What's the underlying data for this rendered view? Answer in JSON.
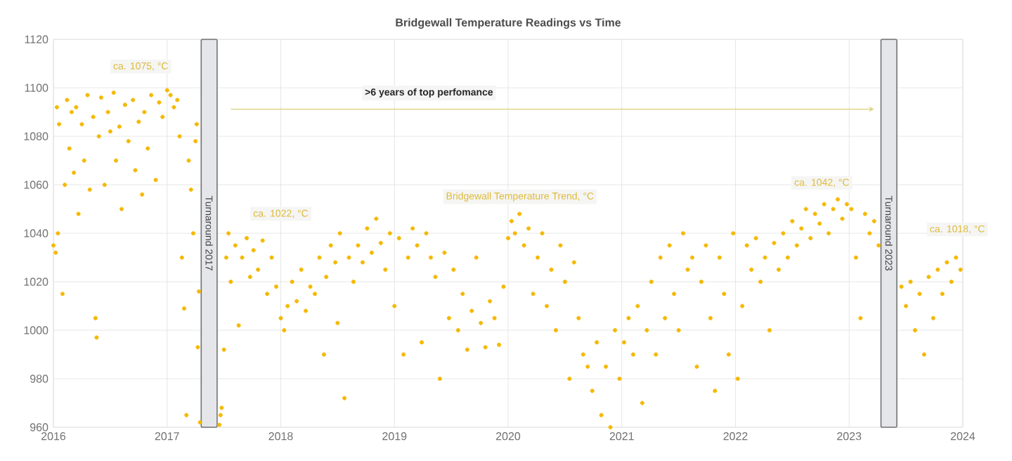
{
  "chart_data": {
    "type": "scatter",
    "title": "Bridgewall Temperature Readings vs Time",
    "xlim": [
      2016,
      2024
    ],
    "xticks": [
      2016,
      2017,
      2018,
      2019,
      2020,
      2021,
      2022,
      2023,
      2024
    ],
    "ylim": [
      960,
      1120
    ],
    "yticks": [
      960,
      980,
      1000,
      1020,
      1040,
      1060,
      1080,
      1100,
      1120
    ],
    "grid": true,
    "bands": [
      {
        "axis": "x",
        "from": 2017.3,
        "to": 2017.44,
        "label": "Turnaround 2017",
        "color": "#e4e6ea"
      },
      {
        "axis": "x",
        "from": 2023.28,
        "to": 2023.42,
        "label": "Turnaround 2023",
        "color": "#e4e6ea"
      }
    ],
    "annotations": [
      "ca. 1075, °C",
      "ca. 1022, °C",
      "Bridgewall Temperature Trend, °C",
      "ca. 1042, °C",
      "ca. 1018, °C",
      ">6 years of top perfomance"
    ],
    "series": [
      {
        "color": "#f5b800",
        "x": [
          2016.0,
          2016.02,
          2016.04,
          2016.03,
          2016.05,
          2016.08,
          2016.1,
          2016.12,
          2016.14,
          2016.16,
          2016.18,
          2016.2,
          2016.22,
          2016.25,
          2016.27,
          2016.3,
          2016.32,
          2016.35,
          2016.37,
          2016.38,
          2016.4,
          2016.42,
          2016.45,
          2016.48,
          2016.5,
          2016.53,
          2016.55,
          2016.58,
          2016.6,
          2016.63,
          2016.66,
          2016.7,
          2016.72,
          2016.75,
          2016.78,
          2016.8,
          2016.83,
          2016.86,
          2016.9,
          2016.93,
          2016.96,
          2017.0,
          2017.03,
          2017.06,
          2017.09,
          2017.11,
          2017.13,
          2017.15,
          2017.17,
          2017.19,
          2017.21,
          2017.23,
          2017.25,
          2017.26,
          2017.27,
          2017.28,
          2017.29,
          2017.46,
          2017.47,
          2017.48,
          2017.5,
          2017.52,
          2017.54,
          2017.56,
          2017.6,
          2017.63,
          2017.66,
          2017.7,
          2017.73,
          2017.76,
          2017.8,
          2017.84,
          2017.88,
          2017.92,
          2017.96,
          2018.0,
          2018.03,
          2018.06,
          2018.1,
          2018.14,
          2018.18,
          2018.22,
          2018.26,
          2018.3,
          2018.34,
          2018.38,
          2018.4,
          2018.44,
          2018.48,
          2018.5,
          2018.52,
          2018.56,
          2018.6,
          2018.64,
          2018.68,
          2018.72,
          2018.76,
          2018.8,
          2018.84,
          2018.88,
          2018.92,
          2018.96,
          2019.0,
          2019.04,
          2019.08,
          2019.12,
          2019.16,
          2019.2,
          2019.24,
          2019.28,
          2019.32,
          2019.36,
          2019.4,
          2019.44,
          2019.48,
          2019.52,
          2019.56,
          2019.6,
          2019.64,
          2019.68,
          2019.72,
          2019.76,
          2019.8,
          2019.84,
          2019.88,
          2019.92,
          2019.96,
          2020.0,
          2020.03,
          2020.06,
          2020.1,
          2020.14,
          2020.18,
          2020.22,
          2020.26,
          2020.3,
          2020.34,
          2020.38,
          2020.42,
          2020.46,
          2020.5,
          2020.54,
          2020.58,
          2020.62,
          2020.66,
          2020.7,
          2020.74,
          2020.78,
          2020.82,
          2020.86,
          2020.9,
          2020.94,
          2020.98,
          2021.02,
          2021.06,
          2021.1,
          2021.14,
          2021.18,
          2021.22,
          2021.26,
          2021.3,
          2021.34,
          2021.38,
          2021.42,
          2021.46,
          2021.5,
          2021.54,
          2021.58,
          2021.62,
          2021.66,
          2021.7,
          2021.74,
          2021.78,
          2021.82,
          2021.86,
          2021.9,
          2021.94,
          2021.98,
          2022.02,
          2022.06,
          2022.1,
          2022.14,
          2022.18,
          2022.22,
          2022.26,
          2022.3,
          2022.34,
          2022.38,
          2022.42,
          2022.46,
          2022.5,
          2022.54,
          2022.58,
          2022.62,
          2022.66,
          2022.7,
          2022.74,
          2022.78,
          2022.82,
          2022.86,
          2022.9,
          2022.94,
          2022.98,
          2023.02,
          2023.06,
          2023.1,
          2023.14,
          2023.18,
          2023.22,
          2023.26,
          2023.46,
          2023.5,
          2023.54,
          2023.58,
          2023.62,
          2023.66,
          2023.7,
          2023.74,
          2023.78,
          2023.82,
          2023.86,
          2023.9,
          2023.94,
          2023.98
        ],
        "values": [
          1035,
          1032,
          1040,
          1092,
          1085,
          1015,
          1060,
          1095,
          1075,
          1090,
          1065,
          1092,
          1048,
          1085,
          1070,
          1097,
          1058,
          1088,
          1005,
          997,
          1080,
          1096,
          1060,
          1090,
          1082,
          1098,
          1070,
          1084,
          1050,
          1093,
          1078,
          1095,
          1066,
          1086,
          1056,
          1090,
          1075,
          1097,
          1062,
          1094,
          1088,
          1099,
          1097,
          1092,
          1095,
          1080,
          1030,
          1009,
          965,
          1070,
          1058,
          1040,
          1078,
          1085,
          993,
          1016,
          962,
          961,
          965,
          968,
          992,
          1030,
          1040,
          1020,
          1035,
          1002,
          1030,
          1038,
          1022,
          1033,
          1025,
          1037,
          1015,
          1030,
          1018,
          1005,
          1000,
          1010,
          1020,
          1012,
          1025,
          1008,
          1018,
          1015,
          1030,
          990,
          1022,
          1035,
          1028,
          1003,
          1040,
          972,
          1030,
          1020,
          1035,
          1028,
          1042,
          1032,
          1046,
          1036,
          1025,
          1040,
          1010,
          1038,
          990,
          1030,
          1042,
          1035,
          995,
          1040,
          1030,
          1022,
          980,
          1032,
          1005,
          1025,
          1000,
          1015,
          992,
          1008,
          1030,
          1003,
          993,
          1012,
          1005,
          994,
          1018,
          1038,
          1045,
          1040,
          1048,
          1035,
          1042,
          1015,
          1030,
          1040,
          1010,
          1025,
          1000,
          1035,
          1020,
          980,
          1028,
          1005,
          990,
          985,
          975,
          995,
          965,
          985,
          960,
          1000,
          980,
          995,
          1005,
          990,
          1010,
          970,
          1000,
          1020,
          990,
          1030,
          1005,
          1035,
          1015,
          1000,
          1040,
          1025,
          1030,
          985,
          1020,
          1035,
          1005,
          975,
          1030,
          1015,
          990,
          1040,
          980,
          1010,
          1035,
          1025,
          1038,
          1020,
          1030,
          1000,
          1036,
          1025,
          1040,
          1030,
          1045,
          1035,
          1042,
          1050,
          1038,
          1048,
          1044,
          1052,
          1040,
          1050,
          1054,
          1046,
          1052,
          1050,
          1030,
          1005,
          1048,
          1040,
          1045,
          1035,
          1018,
          1010,
          1020,
          1000,
          1015,
          990,
          1022,
          1005,
          1025,
          1015,
          1028,
          1020,
          1030,
          1025
        ]
      }
    ]
  }
}
